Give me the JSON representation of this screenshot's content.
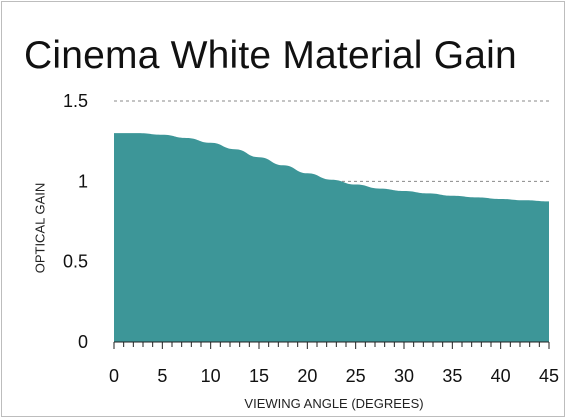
{
  "chart_data": {
    "type": "area",
    "title": "Cinema White Material Gain",
    "xlabel": "VIEWING ANGLE (DEGREES)",
    "ylabel": "OPTICAL GAIN",
    "x": [
      0,
      2.5,
      5,
      7.5,
      10,
      12.5,
      15,
      17.5,
      20,
      22.5,
      25,
      27.5,
      30,
      32.5,
      35,
      37.5,
      40,
      42.5,
      45
    ],
    "series": [
      {
        "values": [
          1.3,
          1.3,
          1.29,
          1.27,
          1.24,
          1.2,
          1.15,
          1.1,
          1.05,
          1.01,
          0.98,
          0.955,
          0.94,
          0.925,
          0.91,
          0.9,
          0.89,
          0.882,
          0.875
        ],
        "color": "#3d9698"
      }
    ],
    "xlim": [
      0,
      45
    ],
    "ylim": [
      0,
      1.5
    ],
    "xticks": [
      0,
      5,
      10,
      15,
      20,
      25,
      30,
      35,
      40,
      45
    ],
    "yticks": [
      0,
      0.5,
      1,
      1.5
    ],
    "ytick_labels": [
      "0",
      "0.5",
      "1",
      "1.5"
    ],
    "gridlines": [
      1,
      1.5
    ],
    "grid": "dashed horizontal"
  }
}
